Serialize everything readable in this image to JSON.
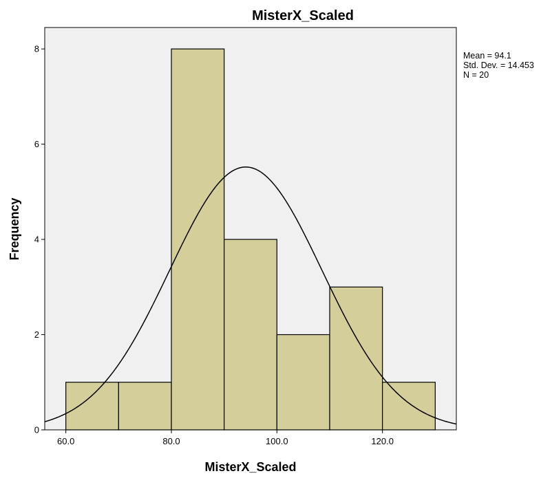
{
  "chart_data": {
    "type": "bar",
    "title": "MisterX_Scaled",
    "xlabel": "MisterX_Scaled",
    "ylabel": "Frequency",
    "bins": [
      {
        "start": 60,
        "end": 70,
        "count": 1
      },
      {
        "start": 70,
        "end": 80,
        "count": 1
      },
      {
        "start": 80,
        "end": 90,
        "count": 8
      },
      {
        "start": 90,
        "end": 100,
        "count": 4
      },
      {
        "start": 100,
        "end": 110,
        "count": 2
      },
      {
        "start": 110,
        "end": 120,
        "count": 3
      },
      {
        "start": 120,
        "end": 130,
        "count": 1
      }
    ],
    "x_ticks": [
      {
        "value": 60,
        "label": "60.0"
      },
      {
        "value": 80,
        "label": "80.0"
      },
      {
        "value": 100,
        "label": "100.0"
      },
      {
        "value": 120,
        "label": "120.0"
      }
    ],
    "y_ticks": [
      {
        "value": 0,
        "label": "0"
      },
      {
        "value": 2,
        "label": "2"
      },
      {
        "value": 4,
        "label": "4"
      },
      {
        "value": 6,
        "label": "6"
      },
      {
        "value": 8,
        "label": "8"
      }
    ],
    "xlim": [
      56,
      134
    ],
    "ylim": [
      0,
      8.45
    ],
    "normal_curve": {
      "mean": 94.1,
      "std_dev": 14.453,
      "n": 20,
      "bin_width": 10
    },
    "stats": {
      "mean_text": "Mean = 94.1",
      "std_text": "Std. Dev. = 14.453",
      "n_text": "N = 20"
    },
    "grid": false,
    "legend": "none",
    "colors": {
      "bar_fill": "#d4cf9a",
      "bar_stroke": "#000000",
      "plot_background": "#f0f0f0",
      "curve": "#000000"
    }
  }
}
